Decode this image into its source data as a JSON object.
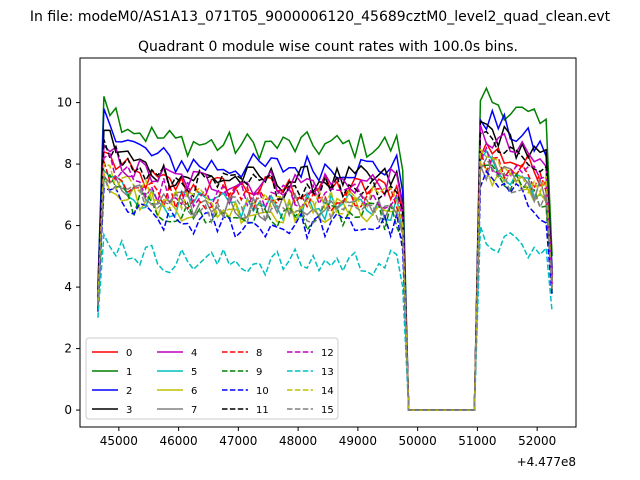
{
  "figure": {
    "suptitle": "In file: modeM0/AS1A13_071T05_9000006120_45689cztM0_level2_quad_clean.evt",
    "title": "Quadrant 0 module wise count rates with 100.0s bins.",
    "offset_label": "+4.477e8"
  },
  "chart_data": {
    "type": "line",
    "title": "Quadrant 0 module wise count rates with 100.0s bins.",
    "xlabel": "",
    "ylabel": "",
    "x_offset": 447700000,
    "xlim": [
      44350,
      52650
    ],
    "ylim": [
      -0.55,
      11.45
    ],
    "xticks": [
      45000,
      46000,
      47000,
      48000,
      49000,
      50000,
      51000,
      52000
    ],
    "xtick_labels": [
      "45000",
      "46000",
      "47000",
      "48000",
      "49000",
      "50000",
      "51000",
      "52000"
    ],
    "yticks": [
      0,
      2,
      4,
      6,
      8,
      10
    ],
    "ytick_labels": [
      "0",
      "2",
      "4",
      "6",
      "8",
      "10"
    ],
    "grid": false,
    "legend_position": "lower-left",
    "legend_ncol": 4,
    "segments": [
      {
        "x_start": 44650,
        "x_end": 49750,
        "step": 100,
        "shape": "active"
      },
      {
        "x_start": 49850,
        "x_end": 50950,
        "step": 100,
        "shape": "zero"
      },
      {
        "x_start": 51050,
        "x_end": 52250,
        "step": 100,
        "shape": "active"
      }
    ],
    "series": [
      {
        "name": "0",
        "color": "#ff0000",
        "dash": "solid",
        "level": 7.2,
        "peak": 8.4,
        "seg3": 8.6,
        "first": 3.8,
        "last": 4.0
      },
      {
        "name": "1",
        "color": "#008000",
        "dash": "solid",
        "level": 8.6,
        "peak": 10.2,
        "seg3": 10.3,
        "first": 4.0,
        "last": 5.0
      },
      {
        "name": "2",
        "color": "#0000ff",
        "dash": "solid",
        "level": 7.9,
        "peak": 9.8,
        "seg3": 9.6,
        "first": 3.9,
        "last": 4.6
      },
      {
        "name": "3",
        "color": "#000000",
        "dash": "solid",
        "level": 7.5,
        "peak": 9.1,
        "seg3": 9.3,
        "first": 3.7,
        "last": 4.4
      },
      {
        "name": "4",
        "color": "#bf00bf",
        "dash": "solid",
        "level": 7.4,
        "peak": 8.6,
        "seg3": 9.0,
        "first": 3.6,
        "last": 4.3
      },
      {
        "name": "5",
        "color": "#00bfbf",
        "dash": "solid",
        "level": 6.6,
        "peak": 7.8,
        "seg3": 8.2,
        "first": 3.4,
        "last": 4.0
      },
      {
        "name": "6",
        "color": "#bfbf00",
        "dash": "solid",
        "level": 6.5,
        "peak": 7.7,
        "seg3": 7.9,
        "first": 3.4,
        "last": 3.9
      },
      {
        "name": "7",
        "color": "#808080",
        "dash": "solid",
        "level": 6.6,
        "peak": 7.6,
        "seg3": 8.0,
        "first": 3.3,
        "last": 3.9
      },
      {
        "name": "8",
        "color": "#ff0000",
        "dash": "dashed",
        "level": 6.9,
        "peak": 8.1,
        "seg3": 8.2,
        "first": 3.5,
        "last": 4.1
      },
      {
        "name": "9",
        "color": "#008000",
        "dash": "dashed",
        "level": 6.3,
        "peak": 7.5,
        "seg3": 7.8,
        "first": 3.3,
        "last": 3.8
      },
      {
        "name": "10",
        "color": "#0000ff",
        "dash": "dashed",
        "level": 6.0,
        "peak": 7.2,
        "seg3": 7.5,
        "first": 3.2,
        "last": 3.7
      },
      {
        "name": "11",
        "color": "#000000",
        "dash": "dashed",
        "level": 7.3,
        "peak": 8.8,
        "seg3": 9.0,
        "first": 3.6,
        "last": 4.2
      },
      {
        "name": "12",
        "color": "#bf00bf",
        "dash": "dashed",
        "level": 7.0,
        "peak": 8.2,
        "seg3": 8.4,
        "first": 3.5,
        "last": 4.1
      },
      {
        "name": "13",
        "color": "#00bfbf",
        "dash": "dashed",
        "level": 4.8,
        "peak": 5.7,
        "seg3": 5.6,
        "first": 3.0,
        "last": 3.2
      },
      {
        "name": "14",
        "color": "#bfbf00",
        "dash": "dashed",
        "level": 6.8,
        "peak": 8.0,
        "seg3": 8.1,
        "first": 3.5,
        "last": 4.0
      },
      {
        "name": "15",
        "color": "#808080",
        "dash": "dashed",
        "level": 6.5,
        "peak": 7.6,
        "seg3": 7.9,
        "first": 3.4,
        "last": 3.9
      }
    ]
  }
}
